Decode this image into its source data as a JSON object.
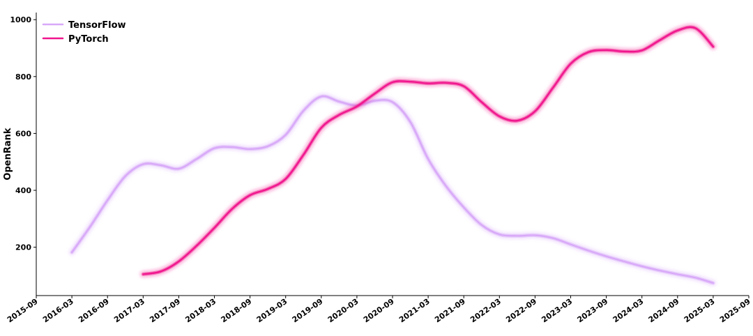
{
  "chart_data": {
    "type": "line",
    "title": "",
    "xlabel": "",
    "ylabel": "OpenRank",
    "x_ticks": [
      "2015-09",
      "2016-03",
      "2016-09",
      "2017-03",
      "2017-09",
      "2018-03",
      "2018-09",
      "2019-03",
      "2019-09",
      "2020-03",
      "2020-09",
      "2021-03",
      "2021-09",
      "2022-03",
      "2022-09",
      "2023-03",
      "2023-09",
      "2024-03",
      "2024-09",
      "2025-03",
      "2025-09"
    ],
    "y_ticks": [
      200,
      400,
      600,
      800,
      1000
    ],
    "ylim": [
      30,
      1025
    ],
    "grid": false,
    "legend_position": "top-left",
    "series": [
      {
        "name": "TensorFlow",
        "color": "#d8a8f8",
        "points": [
          [
            "2016-03",
            182
          ],
          [
            "2016-06",
            270
          ],
          [
            "2016-09",
            365
          ],
          [
            "2016-12",
            450
          ],
          [
            "2017-03",
            492
          ],
          [
            "2017-06",
            488
          ],
          [
            "2017-09",
            476
          ],
          [
            "2017-12",
            510
          ],
          [
            "2018-03",
            548
          ],
          [
            "2018-06",
            552
          ],
          [
            "2018-09",
            545
          ],
          [
            "2018-12",
            555
          ],
          [
            "2019-03",
            595
          ],
          [
            "2019-06",
            680
          ],
          [
            "2019-09",
            730
          ],
          [
            "2019-12",
            712
          ],
          [
            "2020-03",
            698
          ],
          [
            "2020-06",
            715
          ],
          [
            "2020-09",
            710
          ],
          [
            "2020-12",
            640
          ],
          [
            "2021-03",
            510
          ],
          [
            "2021-06",
            415
          ],
          [
            "2021-09",
            340
          ],
          [
            "2021-12",
            278
          ],
          [
            "2022-03",
            245
          ],
          [
            "2022-06",
            240
          ],
          [
            "2022-09",
            242
          ],
          [
            "2022-12",
            232
          ],
          [
            "2023-03",
            210
          ],
          [
            "2023-06",
            188
          ],
          [
            "2023-09",
            168
          ],
          [
            "2023-12",
            150
          ],
          [
            "2024-03",
            133
          ],
          [
            "2024-06",
            118
          ],
          [
            "2024-09",
            105
          ],
          [
            "2024-12",
            93
          ],
          [
            "2025-03",
            74
          ]
        ]
      },
      {
        "name": "PyTorch",
        "color": "#f0148c",
        "points": [
          [
            "2017-03",
            105
          ],
          [
            "2017-06",
            115
          ],
          [
            "2017-09",
            150
          ],
          [
            "2017-12",
            205
          ],
          [
            "2018-03",
            268
          ],
          [
            "2018-06",
            335
          ],
          [
            "2018-09",
            383
          ],
          [
            "2018-12",
            405
          ],
          [
            "2019-03",
            440
          ],
          [
            "2019-06",
            525
          ],
          [
            "2019-09",
            620
          ],
          [
            "2019-12",
            665
          ],
          [
            "2020-03",
            695
          ],
          [
            "2020-06",
            740
          ],
          [
            "2020-09",
            780
          ],
          [
            "2020-12",
            782
          ],
          [
            "2021-03",
            776
          ],
          [
            "2021-06",
            778
          ],
          [
            "2021-09",
            766
          ],
          [
            "2021-12",
            710
          ],
          [
            "2022-03",
            660
          ],
          [
            "2022-06",
            645
          ],
          [
            "2022-09",
            678
          ],
          [
            "2022-12",
            760
          ],
          [
            "2023-03",
            845
          ],
          [
            "2023-06",
            886
          ],
          [
            "2023-09",
            893
          ],
          [
            "2023-12",
            888
          ],
          [
            "2024-03",
            892
          ],
          [
            "2024-06",
            928
          ],
          [
            "2024-09",
            962
          ],
          [
            "2024-12",
            970
          ],
          [
            "2025-03",
            905
          ]
        ]
      }
    ]
  }
}
